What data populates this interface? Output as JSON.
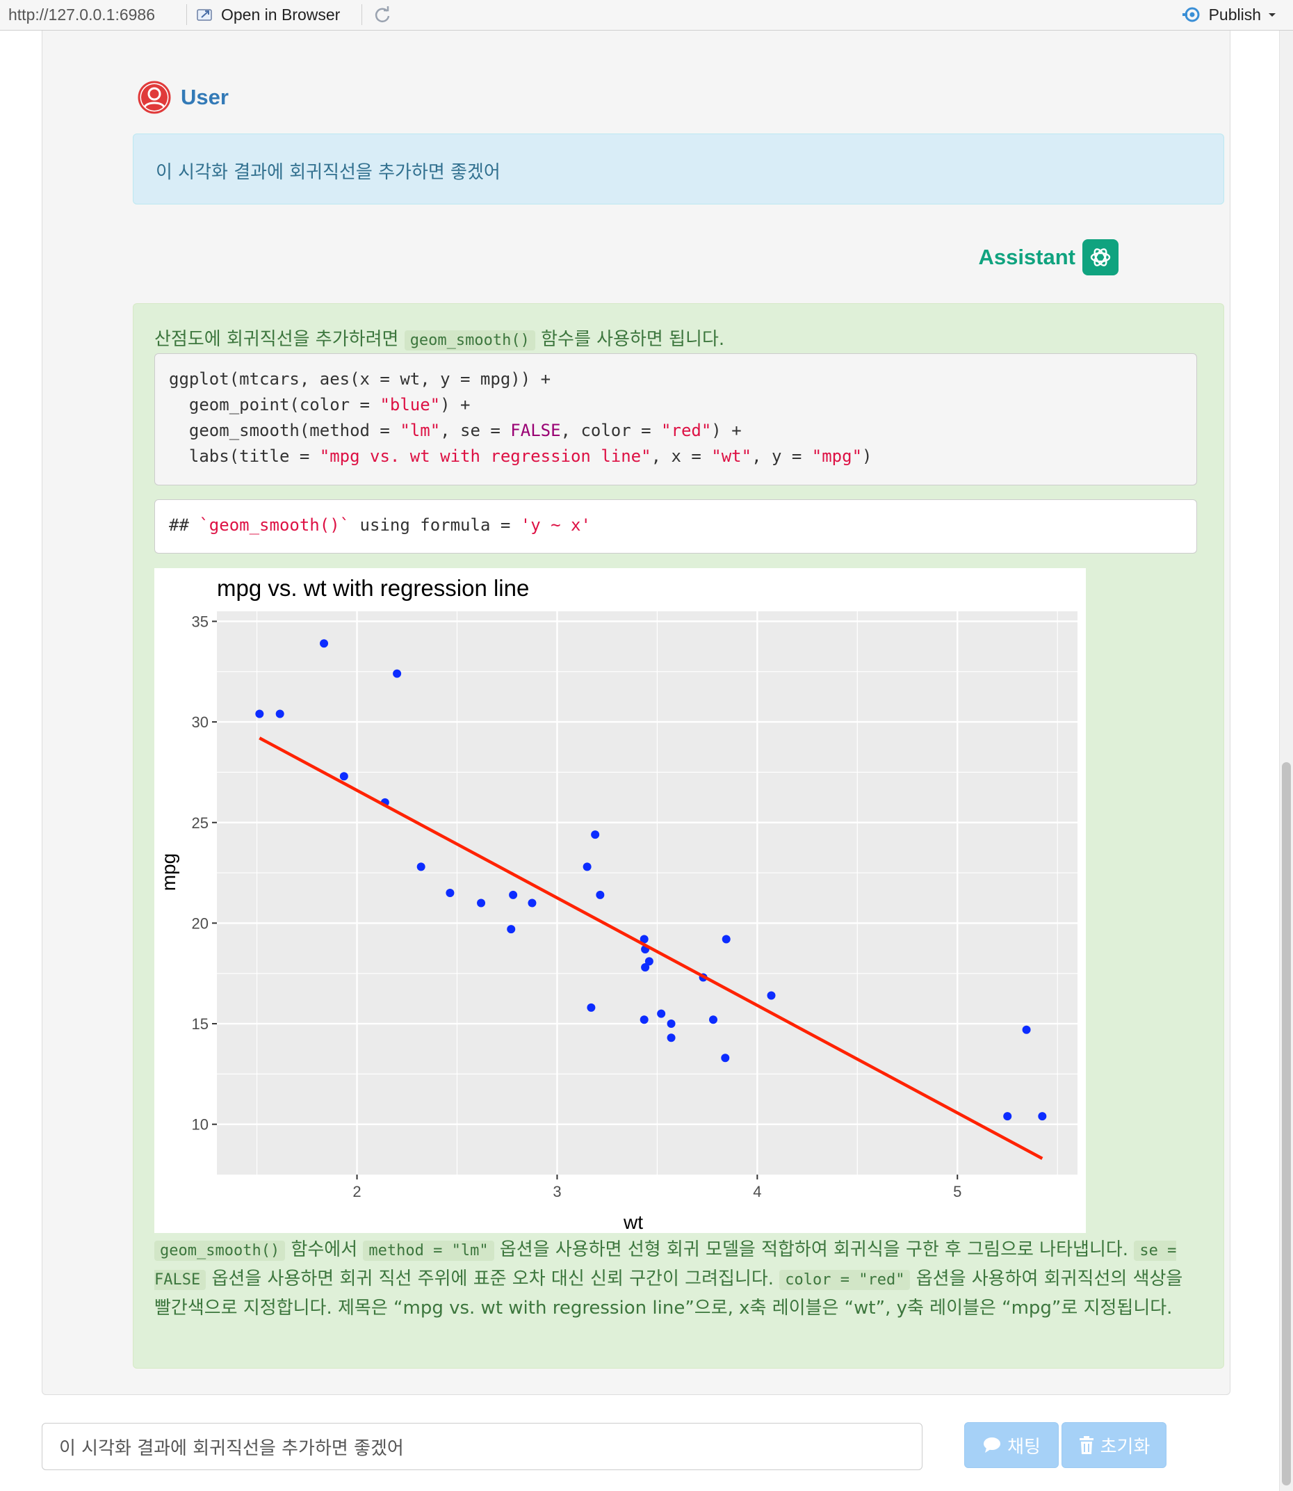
{
  "toolbar": {
    "url": "http://127.0.0.1:6986",
    "open_in_browser": "Open in Browser",
    "publish": "Publish"
  },
  "user": {
    "name": "User",
    "message": "이 시각화 결과에 회귀직선을 추가하면 좋겠어"
  },
  "assistant": {
    "name": "Assistant",
    "intro_before": "산점도에 회귀직선을 추가하려면",
    "intro_code": "geom_smooth()",
    "intro_after": "함수를 사용하면 됩니다.",
    "code_lines": [
      "ggplot(mtcars, aes(x = wt, y = mpg)) +",
      "  geom_point(color = \"blue\") +",
      "  geom_smooth(method = \"lm\", se = FALSE, color = \"red\") +",
      "  labs(title = \"mpg vs. wt with regression line\", x = \"wt\", y = \"mpg\")"
    ],
    "output_line": "## `geom_smooth()` using formula = 'y ~ x'",
    "explain": {
      "c1": "geom_smooth()",
      "t1": "함수에서",
      "c2": "method = \"lm\"",
      "t2": "옵션을 사용하면 선형 회귀 모델을 적합하여 회귀식을 구한 후 그림으로 나타냅니다.",
      "c3": "se = FALSE",
      "t3": "옵션을 사용하면 회귀 직선 주위에 표준 오차 대신 신뢰 구간이 그려집니다.",
      "c4": "color = \"red\"",
      "t4": "옵션을 사용하여 회귀직선의 색상을 빨간색으로 지정합니다. 제목은 “mpg vs. wt with regression line”으로, x축 레이블은 “wt”, y축 레이블은 “mpg”로 지정됩니다."
    }
  },
  "chart_data": {
    "type": "scatter",
    "title": "mpg vs. wt with regression line",
    "xlabel": "wt",
    "ylabel": "mpg",
    "xlim": [
      1.3,
      5.6
    ],
    "ylim": [
      7.5,
      35.5
    ],
    "x_ticks": [
      2,
      3,
      4,
      5
    ],
    "y_ticks": [
      10,
      15,
      20,
      25,
      30,
      35
    ],
    "grid": true,
    "point_color": "#0c2cff",
    "line_color": "#ff2200",
    "background": "#ebebeb",
    "points": [
      [
        1.513,
        30.4
      ],
      [
        1.615,
        30.4
      ],
      [
        1.835,
        33.9
      ],
      [
        1.935,
        27.3
      ],
      [
        2.14,
        26.0
      ],
      [
        2.2,
        32.4
      ],
      [
        2.32,
        22.8
      ],
      [
        2.465,
        21.5
      ],
      [
        2.62,
        21.0
      ],
      [
        2.77,
        19.7
      ],
      [
        2.78,
        21.4
      ],
      [
        2.875,
        21.0
      ],
      [
        3.15,
        22.8
      ],
      [
        3.17,
        15.8
      ],
      [
        3.19,
        24.4
      ],
      [
        3.215,
        21.4
      ],
      [
        3.435,
        19.2
      ],
      [
        3.435,
        15.2
      ],
      [
        3.44,
        18.7
      ],
      [
        3.44,
        17.8
      ],
      [
        3.46,
        18.1
      ],
      [
        3.52,
        15.5
      ],
      [
        3.57,
        15.0
      ],
      [
        3.57,
        14.3
      ],
      [
        3.73,
        17.3
      ],
      [
        3.78,
        15.2
      ],
      [
        3.84,
        13.3
      ],
      [
        3.845,
        19.2
      ],
      [
        4.07,
        16.4
      ],
      [
        5.25,
        10.4
      ],
      [
        5.345,
        14.7
      ],
      [
        5.424,
        10.4
      ]
    ],
    "regression": {
      "x": [
        1.513,
        5.424
      ],
      "y": [
        29.2,
        8.3
      ]
    }
  },
  "input": {
    "value": "이 시각화 결과에 회귀직선을 추가하면 좋겠어"
  },
  "buttons": {
    "send": "채팅",
    "reset": "초기화"
  }
}
